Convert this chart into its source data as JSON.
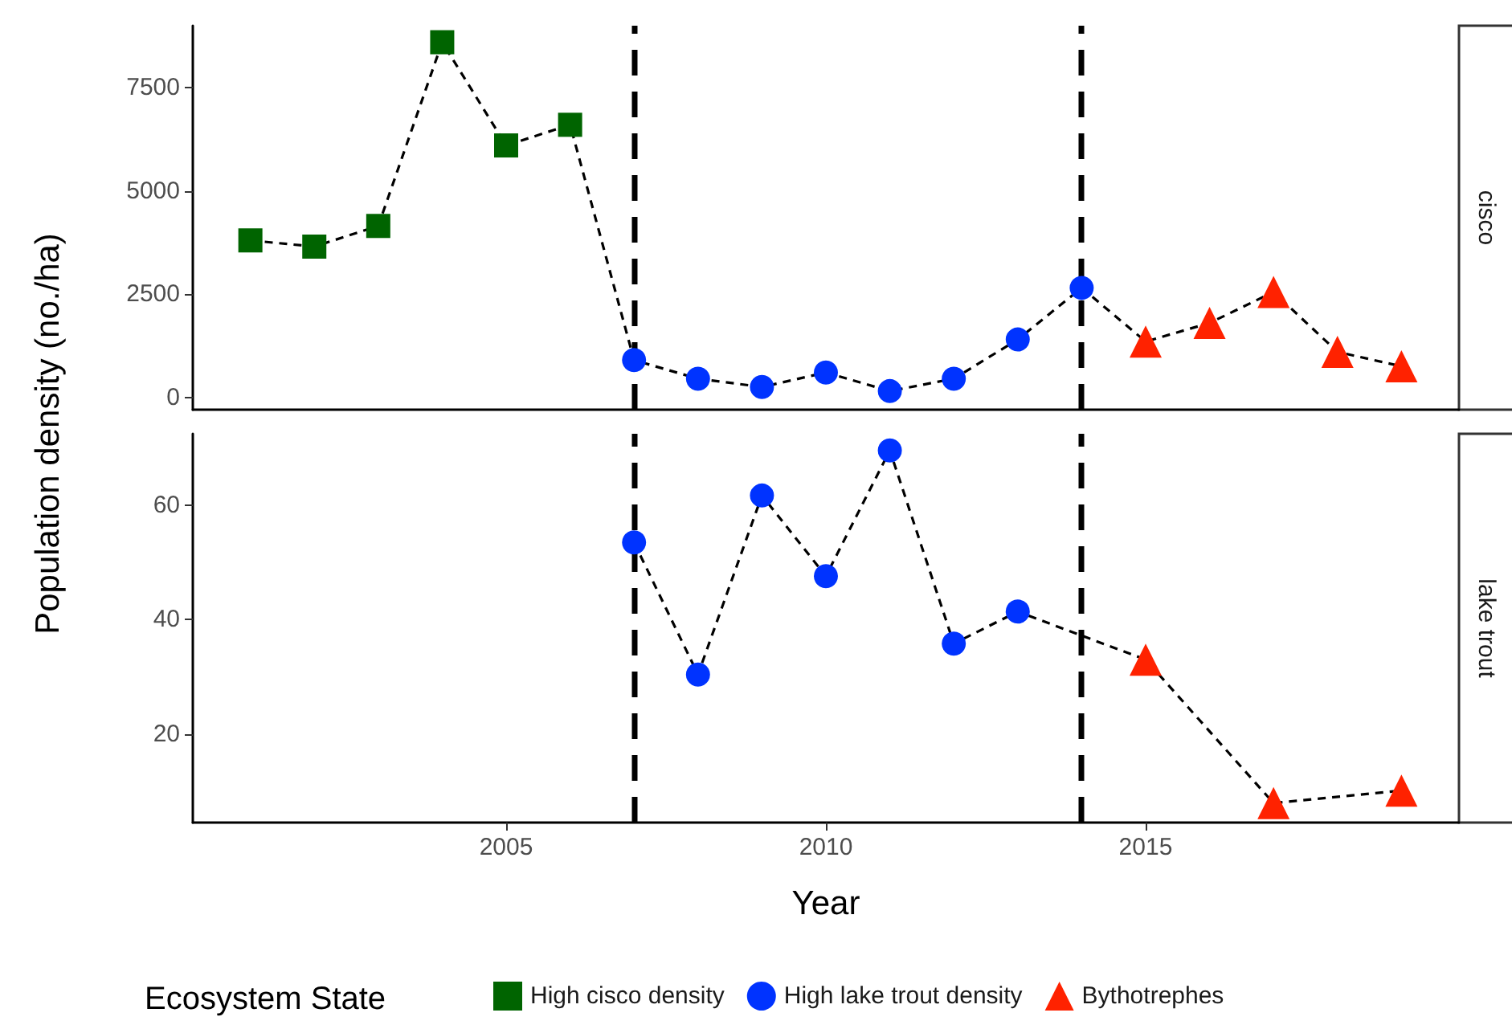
{
  "chart_data": [
    {
      "type": "scatter",
      "annotations": [
        "cisco"
      ],
      "ylabel": "Population density (no./ha)",
      "legend_title": "Ecosystem State",
      "legend": "bottom",
      "x": [
        2001,
        2002,
        2003,
        2004,
        2005,
        2006,
        2007,
        2008,
        2009,
        2010,
        2011,
        2012,
        2013,
        2014,
        2015,
        2016,
        2017,
        2018,
        2019
      ],
      "xlim": [
        2000.1,
        2019.9
      ],
      "xticks": [
        2005,
        2010,
        2015
      ],
      "ylim": [
        -300,
        9000
      ],
      "yticks": [
        0,
        2500,
        5000,
        7500
      ],
      "tick_labels": "y",
      "grid": false,
      "series": [
        {
          "type": "line",
          "color": "#000000",
          "line_style": "dashed",
          "marker": "none",
          "values": [
            3800,
            3650,
            4150,
            8600,
            6100,
            6600,
            900,
            450,
            250,
            600,
            150,
            450,
            1400,
            2650,
            1350,
            1800,
            2550,
            1100,
            750
          ]
        },
        {
          "name": "High cisco density",
          "color": "#006400",
          "marker": "square",
          "values": [
            3800,
            3650,
            4150,
            8600,
            6100,
            6600,
            null,
            null,
            null,
            null,
            null,
            null,
            null,
            null,
            null,
            null,
            null,
            null,
            null
          ]
        },
        {
          "name": "High lake trout density",
          "color": "#0033ff",
          "marker": "circle",
          "values": [
            null,
            null,
            null,
            null,
            null,
            null,
            900,
            450,
            250,
            600,
            150,
            450,
            1400,
            2650,
            null,
            null,
            null,
            null,
            null
          ]
        },
        {
          "name": "Bythotrephes",
          "color": "#ff2200",
          "marker": "triangle",
          "values": [
            null,
            null,
            null,
            null,
            null,
            null,
            null,
            null,
            null,
            null,
            null,
            null,
            null,
            null,
            1350,
            1800,
            2550,
            1100,
            750
          ]
        }
      ],
      "ref_lines": [
        {
          "axis": "x",
          "value": 2007,
          "color": "#000000",
          "line_style": "dashed"
        },
        {
          "axis": "x",
          "value": 2014,
          "color": "#000000",
          "line_style": "dashed"
        }
      ]
    },
    {
      "type": "scatter",
      "annotations": [
        "lake trout"
      ],
      "xlabel": "Year",
      "x": [
        2007,
        2008,
        2009,
        2010,
        2011,
        2012,
        2013,
        2015,
        2017,
        2019
      ],
      "xlim": [
        2000.1,
        2019.9
      ],
      "xticks": [
        2005,
        2010,
        2015
      ],
      "ylim": [
        4.5,
        72.5
      ],
      "yticks": [
        20,
        40,
        60
      ],
      "grid": false,
      "series": [
        {
          "type": "line",
          "color": "#000000",
          "line_style": "dashed",
          "marker": "none",
          "values": [
            53.5,
            30.4,
            61.7,
            47.6,
            69.6,
            35.8,
            41.4,
            33,
            7.9,
            10.1
          ]
        },
        {
          "name": "High lake trout density",
          "color": "#0033ff",
          "marker": "circle",
          "values": [
            53.5,
            30.4,
            61.7,
            47.6,
            69.6,
            35.8,
            41.4,
            null,
            null,
            null
          ]
        },
        {
          "name": "Bythotrephes",
          "color": "#ff2200",
          "marker": "triangle",
          "values": [
            null,
            null,
            null,
            null,
            null,
            null,
            null,
            33,
            7.9,
            10.1
          ]
        }
      ],
      "ref_lines": [
        {
          "axis": "x",
          "value": 2007,
          "color": "#000000",
          "line_style": "dashed"
        },
        {
          "axis": "x",
          "value": 2014,
          "color": "#000000",
          "line_style": "dashed"
        }
      ]
    }
  ]
}
